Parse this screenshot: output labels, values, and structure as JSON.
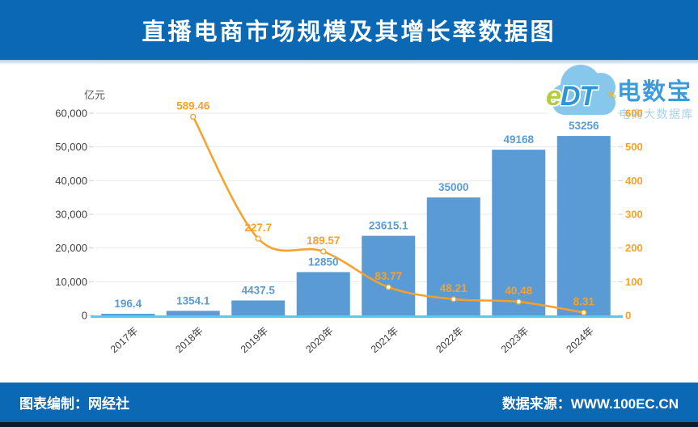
{
  "header": {
    "title": "直播电商市场规模及其增长率数据图",
    "bg_color": "#0B68B4",
    "text_color": "#FFFFFF"
  },
  "watermark": {
    "logo_e": "e",
    "logo_dt": "DT",
    "brand": "电数宝",
    "subtitle": "电商大数据库",
    "cloud_color": "#87C7EC",
    "brand_color": "#3D9BDC",
    "subtitle_color": "#A5D2F0"
  },
  "footer": {
    "left": "图表编制：网经社",
    "right": "数据来源：WWW.100EC.CN"
  },
  "chart_data": {
    "type": "bar",
    "subtype": "bar+line dual axis",
    "title": "直播电商市场规模及其增长率数据图",
    "categories": [
      "2017年",
      "2018年",
      "2019年",
      "2020年",
      "2021年",
      "2022年",
      "2023年",
      "2024年"
    ],
    "series": [
      {
        "name": "直播电商市场规模",
        "type": "bar",
        "axis": "left",
        "unit": "亿元",
        "values": [
          196.4,
          1354.1,
          4437.5,
          12850,
          23615.1,
          35000,
          49168,
          53256
        ],
        "labels": [
          "196.4",
          "1354.1",
          "4437.5",
          "12850",
          "23615.1",
          "35000",
          "49168",
          "53256"
        ]
      },
      {
        "name": "增长率",
        "type": "line",
        "axis": "right",
        "unit": "%",
        "values": [
          null,
          589.46,
          227.7,
          189.57,
          83.77,
          48.21,
          40.48,
          8.31
        ],
        "labels": [
          "",
          "589.46",
          "227.7",
          "189.57",
          "83.77",
          "48.21",
          "40.48",
          "8.31"
        ]
      }
    ],
    "left_axis": {
      "title": "亿元",
      "min": 0,
      "max": 60000,
      "ticks": [
        "60,000",
        "50,000",
        "40,000",
        "30,000",
        "20,000",
        "10,000",
        "0"
      ]
    },
    "right_axis": {
      "title": "%",
      "min": 0,
      "max": 600,
      "ticks": [
        "600",
        "500",
        "400",
        "300",
        "200",
        "100",
        "0"
      ]
    },
    "grid": true,
    "legend": "none",
    "colors": {
      "bar": "#5B9BD5",
      "bar_label": "#5B9BD5",
      "line": "#F9A02B",
      "line_label": "#F9A02B",
      "marker_fill": "#FFFFFF",
      "left_tick": "#404040",
      "right_tick": "#F9A02B",
      "x_label": "#3F3F3F",
      "grid_line": "#EAEAEA",
      "tick_mark": "#CFCFCF",
      "baseline": "#5BC9F1",
      "axis_title_left": "#595959",
      "axis_title_right": "#E3B33C"
    }
  }
}
